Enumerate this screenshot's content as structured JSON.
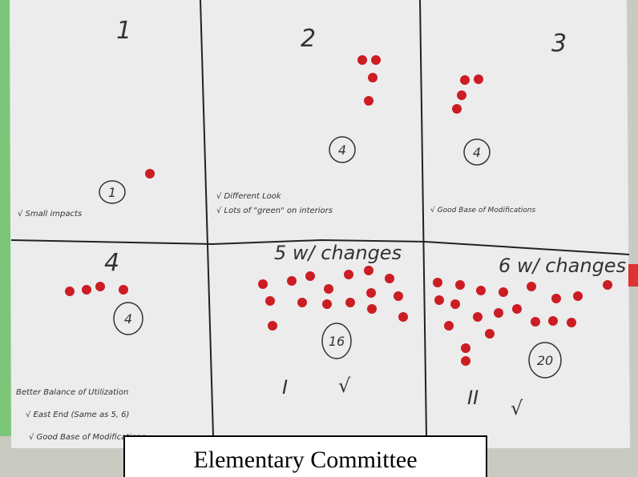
{
  "panels": [
    {
      "number": "1",
      "count": "1",
      "notes": [
        "√ Small impacts"
      ]
    },
    {
      "number": "2",
      "count": "4",
      "notes": [
        "√ Different Look",
        "√ Lots of \"green\" on interiors"
      ]
    },
    {
      "number": "3",
      "count": "4",
      "notes": [
        "√ Good Base of Modifications"
      ]
    },
    {
      "number": "4",
      "count": "4",
      "notes": [
        "Better Balance of Utilization",
        "√ East End (Same as 5, 6)",
        "√ Good Base of Modifications"
      ]
    },
    {
      "number": "5 w/ changes",
      "count": "16",
      "marks": [
        "I",
        "√"
      ]
    },
    {
      "number": "6 w/ changes",
      "count": "20",
      "marks": [
        "II",
        "√"
      ]
    }
  ],
  "caption": "Elementary Committee"
}
